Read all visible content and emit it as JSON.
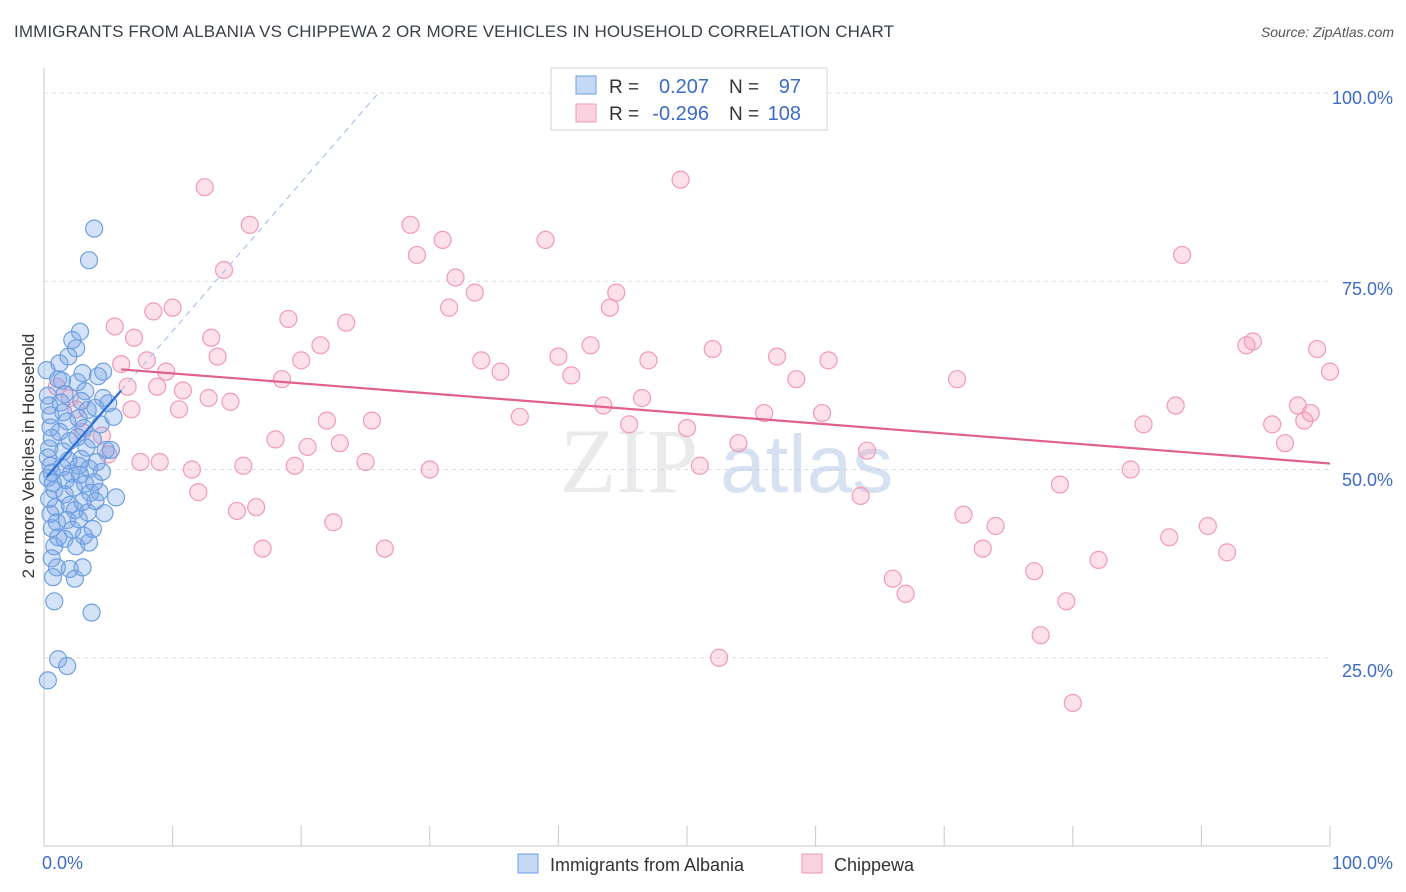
{
  "header": {
    "title": "IMMIGRANTS FROM ALBANIA VS CHIPPEWA 2 OR MORE VEHICLES IN HOUSEHOLD CORRELATION CHART",
    "source": "Source: ZipAtlas.com"
  },
  "watermark": {
    "zip": "ZIP",
    "atlas": "atlas"
  },
  "colors": {
    "blue": "#6fa0e0",
    "blue_line": "#2b6fd6",
    "pink": "#f29ab7",
    "pink_line": "#e0608e",
    "axis_text": "#3d6cc7",
    "grid": "#d9dde3"
  },
  "legend_box": {
    "rows": [
      {
        "r_label": "R =",
        "r_value": "0.207",
        "n_label": "N =",
        "n_value": "97"
      },
      {
        "r_label": "R =",
        "r_value": "-0.296",
        "n_label": "N =",
        "n_value": "108"
      }
    ]
  },
  "chart_data": {
    "type": "scatter",
    "title": "IMMIGRANTS FROM ALBANIA VS CHIPPEWA 2 OR MORE VEHICLES IN HOUSEHOLD CORRELATION CHART",
    "xlabel": "",
    "ylabel": "2 or more Vehicles in Household",
    "x_tick_labels": [
      "0.0%",
      "100.0%"
    ],
    "y_tick_labels": [
      "100.0%",
      "75.0%",
      "50.0%",
      "25.0%"
    ],
    "y_ticks": [
      100,
      75,
      50,
      25
    ],
    "xlim": [
      0,
      100
    ],
    "ylim": [
      0,
      102
    ],
    "grid": true,
    "legend_position": "bottom",
    "series": [
      {
        "name": "Immigrants from Albania",
        "color": "#6fa0e0",
        "trend": {
          "x": [
            0.2,
            6.0
          ],
          "y": [
            49.0,
            60.5
          ]
        },
        "reference": {
          "x": [
            6.0,
            26.0
          ],
          "y": [
            60.5,
            100.0
          ]
        },
        "points": [
          [
            0.2,
            63.2
          ],
          [
            0.3,
            59.8
          ],
          [
            0.4,
            58.5
          ],
          [
            0.5,
            57.2
          ],
          [
            0.5,
            55.6
          ],
          [
            0.6,
            54.2
          ],
          [
            0.4,
            52.8
          ],
          [
            0.3,
            51.6
          ],
          [
            0.5,
            50.5
          ],
          [
            0.6,
            49.6
          ],
          [
            0.3,
            48.9
          ],
          [
            0.7,
            48.2
          ],
          [
            0.8,
            47.3
          ],
          [
            0.4,
            46.1
          ],
          [
            0.9,
            45.0
          ],
          [
            0.5,
            44.1
          ],
          [
            1.0,
            43.0
          ],
          [
            0.6,
            42.2
          ],
          [
            1.1,
            41.0
          ],
          [
            0.8,
            39.8
          ],
          [
            0.6,
            38.2
          ],
          [
            1.0,
            37.0
          ],
          [
            0.7,
            35.7
          ],
          [
            0.8,
            32.5
          ],
          [
            1.1,
            24.8
          ],
          [
            0.3,
            22.0
          ],
          [
            1.2,
            64.1
          ],
          [
            1.4,
            61.8
          ],
          [
            1.6,
            60.0
          ],
          [
            1.3,
            58.9
          ],
          [
            1.5,
            57.6
          ],
          [
            1.8,
            56.4
          ],
          [
            1.2,
            55.0
          ],
          [
            2.0,
            53.8
          ],
          [
            1.5,
            52.4
          ],
          [
            1.9,
            51.2
          ],
          [
            1.4,
            50.3
          ],
          [
            2.1,
            49.5
          ],
          [
            1.7,
            48.6
          ],
          [
            2.3,
            47.6
          ],
          [
            1.6,
            46.7
          ],
          [
            2.0,
            45.3
          ],
          [
            2.4,
            44.6
          ],
          [
            1.8,
            43.3
          ],
          [
            2.2,
            42.0
          ],
          [
            1.6,
            40.8
          ],
          [
            2.5,
            39.8
          ],
          [
            2.0,
            36.8
          ],
          [
            2.4,
            35.5
          ],
          [
            1.8,
            23.9
          ],
          [
            2.2,
            67.2
          ],
          [
            2.8,
            68.3
          ],
          [
            2.5,
            66.1
          ],
          [
            3.0,
            62.8
          ],
          [
            2.6,
            61.6
          ],
          [
            3.2,
            60.4
          ],
          [
            2.9,
            59.1
          ],
          [
            3.4,
            57.9
          ],
          [
            2.7,
            56.8
          ],
          [
            3.1,
            55.5
          ],
          [
            2.6,
            54.3
          ],
          [
            3.3,
            52.9
          ],
          [
            2.9,
            51.4
          ],
          [
            3.5,
            50.1
          ],
          [
            2.8,
            49.3
          ],
          [
            3.2,
            48.1
          ],
          [
            3.6,
            46.9
          ],
          [
            3.0,
            45.7
          ],
          [
            3.4,
            44.3
          ],
          [
            2.7,
            43.4
          ],
          [
            3.8,
            42.1
          ],
          [
            3.1,
            41.2
          ],
          [
            3.5,
            40.3
          ],
          [
            3.0,
            37.0
          ],
          [
            3.9,
            82.0
          ],
          [
            3.5,
            77.8
          ],
          [
            4.2,
            62.4
          ],
          [
            4.6,
            59.5
          ],
          [
            4.0,
            58.2
          ],
          [
            4.4,
            56.0
          ],
          [
            3.8,
            54.0
          ],
          [
            4.8,
            52.6
          ],
          [
            4.1,
            51.0
          ],
          [
            4.5,
            49.7
          ],
          [
            3.9,
            48.3
          ],
          [
            4.3,
            47.0
          ],
          [
            4.0,
            45.8
          ],
          [
            4.7,
            44.2
          ],
          [
            3.7,
            31.0
          ],
          [
            5.0,
            58.8
          ],
          [
            5.4,
            57.0
          ],
          [
            5.2,
            52.6
          ],
          [
            5.6,
            46.3
          ],
          [
            4.6,
            63.0
          ],
          [
            1.9,
            65.0
          ],
          [
            2.7,
            50.5
          ],
          [
            1.1,
            62.0
          ]
        ]
      },
      {
        "name": "Chippewa",
        "color": "#f29ab7",
        "trend": {
          "x": [
            6.0,
            100.0
          ],
          "y": [
            63.3,
            50.8
          ]
        },
        "points": [
          [
            1.0,
            61.0
          ],
          [
            2.0,
            59.5
          ],
          [
            2.5,
            58.0
          ],
          [
            3.0,
            55.0
          ],
          [
            4.5,
            54.5
          ],
          [
            5.0,
            52.0
          ],
          [
            5.5,
            69.0
          ],
          [
            6.0,
            64.0
          ],
          [
            6.5,
            61.0
          ],
          [
            6.8,
            58.0
          ],
          [
            7.0,
            67.5
          ],
          [
            7.5,
            51.0
          ],
          [
            8.0,
            64.5
          ],
          [
            8.5,
            71.0
          ],
          [
            8.8,
            61.0
          ],
          [
            9.5,
            63.0
          ],
          [
            10.0,
            71.5
          ],
          [
            10.5,
            58.0
          ],
          [
            10.8,
            60.5
          ],
          [
            11.5,
            50.0
          ],
          [
            12.0,
            47.0
          ],
          [
            12.5,
            87.5
          ],
          [
            12.8,
            59.5
          ],
          [
            13.0,
            67.5
          ],
          [
            13.5,
            65.0
          ],
          [
            14.0,
            76.5
          ],
          [
            14.5,
            59.0
          ],
          [
            15.0,
            44.5
          ],
          [
            15.5,
            50.5
          ],
          [
            16.0,
            82.5
          ],
          [
            16.5,
            45.0
          ],
          [
            17.0,
            39.5
          ],
          [
            18.0,
            54.0
          ],
          [
            19.0,
            70.0
          ],
          [
            19.5,
            50.5
          ],
          [
            20.0,
            64.5
          ],
          [
            20.5,
            53.0
          ],
          [
            21.5,
            66.5
          ],
          [
            22.0,
            56.5
          ],
          [
            22.5,
            43.0
          ],
          [
            23.0,
            53.5
          ],
          [
            23.5,
            69.5
          ],
          [
            25.0,
            51.0
          ],
          [
            25.5,
            56.5
          ],
          [
            26.5,
            39.5
          ],
          [
            28.5,
            82.5
          ],
          [
            29.0,
            78.5
          ],
          [
            30.0,
            50.0
          ],
          [
            31.0,
            80.5
          ],
          [
            31.5,
            71.5
          ],
          [
            32.0,
            75.5
          ],
          [
            33.5,
            73.5
          ],
          [
            34.0,
            64.5
          ],
          [
            35.5,
            63.0
          ],
          [
            39.0,
            80.5
          ],
          [
            40.0,
            65.0
          ],
          [
            41.0,
            62.5
          ],
          [
            42.5,
            66.5
          ],
          [
            43.5,
            58.5
          ],
          [
            44.0,
            71.5
          ],
          [
            44.5,
            73.5
          ],
          [
            45.5,
            56.0
          ],
          [
            46.5,
            59.5
          ],
          [
            47.0,
            64.5
          ],
          [
            49.5,
            88.5
          ],
          [
            50.0,
            55.5
          ],
          [
            51.0,
            50.5
          ],
          [
            52.0,
            66.0
          ],
          [
            52.5,
            25.0
          ],
          [
            54.0,
            53.5
          ],
          [
            56.0,
            57.5
          ],
          [
            58.5,
            62.0
          ],
          [
            60.5,
            57.5
          ],
          [
            63.5,
            46.5
          ],
          [
            64.0,
            52.5
          ],
          [
            66.0,
            35.5
          ],
          [
            67.0,
            33.5
          ],
          [
            71.0,
            62.0
          ],
          [
            71.5,
            44.0
          ],
          [
            73.0,
            39.5
          ],
          [
            74.0,
            42.5
          ],
          [
            77.0,
            36.5
          ],
          [
            77.5,
            28.0
          ],
          [
            79.0,
            48.0
          ],
          [
            79.5,
            32.5
          ],
          [
            80.0,
            19.0
          ],
          [
            82.0,
            38.0
          ],
          [
            84.5,
            50.0
          ],
          [
            85.5,
            56.0
          ],
          [
            87.5,
            41.0
          ],
          [
            88.0,
            58.5
          ],
          [
            88.5,
            78.5
          ],
          [
            90.5,
            42.5
          ],
          [
            92.0,
            39.0
          ],
          [
            93.5,
            66.5
          ],
          [
            94.0,
            67.0
          ],
          [
            95.5,
            56.0
          ],
          [
            96.5,
            53.5
          ],
          [
            97.5,
            58.5
          ],
          [
            98.0,
            56.5
          ],
          [
            98.5,
            57.5
          ],
          [
            99.0,
            66.0
          ],
          [
            100.0,
            63.0
          ],
          [
            61.0,
            64.5
          ],
          [
            57.0,
            65.0
          ],
          [
            37.0,
            57.0
          ],
          [
            18.5,
            62.0
          ],
          [
            9.0,
            51.0
          ]
        ]
      }
    ]
  }
}
